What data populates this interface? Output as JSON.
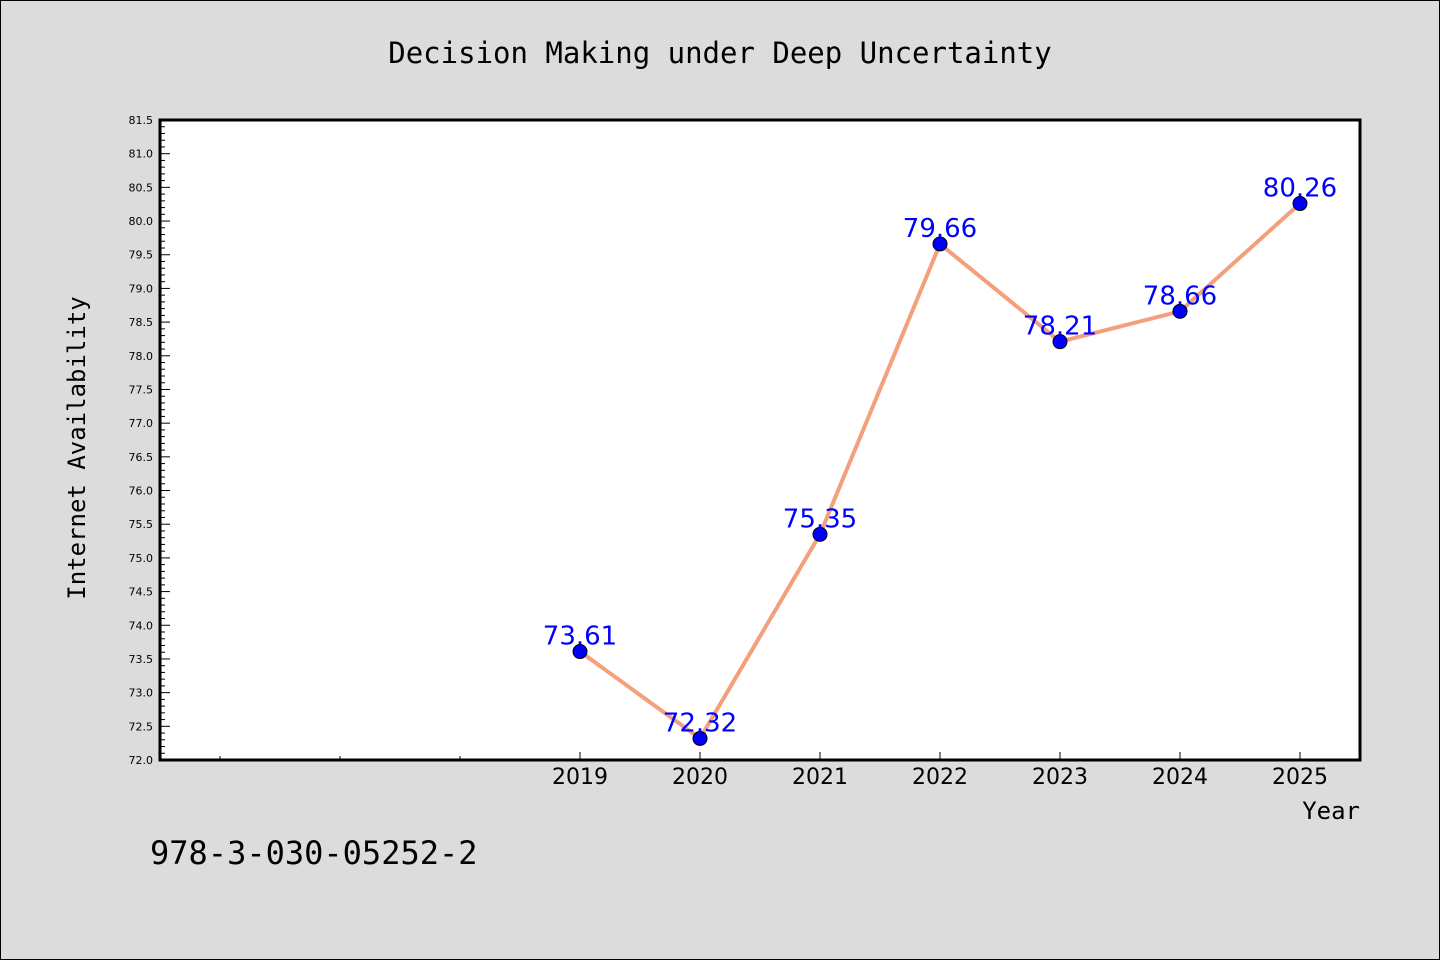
{
  "chart_data": {
    "type": "line",
    "title": "Decision Making under Deep Uncertainty",
    "xlabel": "Year",
    "ylabel": "Internet Availability",
    "categories": [
      "2019",
      "2020",
      "2021",
      "2022",
      "2023",
      "2024",
      "2025"
    ],
    "series": [
      {
        "values": [
          73.61,
          72.32,
          75.35,
          79.66,
          78.21,
          78.66,
          80.26
        ],
        "labels": [
          "73.61",
          "72.32",
          "75.35",
          "79.66",
          "78.21",
          "78.66",
          "80.26"
        ]
      }
    ],
    "yticks": [
      "72.0",
      "72.5",
      "73.0",
      "73.5",
      "74.0",
      "74.5",
      "75.0",
      "75.5",
      "76.0",
      "76.5",
      "77.0",
      "77.5",
      "78.0",
      "78.5",
      "79.0",
      "79.5",
      "80.0",
      "80.5",
      "81.0",
      "81.5"
    ],
    "ylim": [
      72.0,
      81.5
    ],
    "grid": false,
    "line_color": "#f4a07c",
    "marker_color": "#0000ff",
    "label_color": "#0000ff"
  },
  "footer": {
    "isbn": "978-3-030-05252-2"
  }
}
